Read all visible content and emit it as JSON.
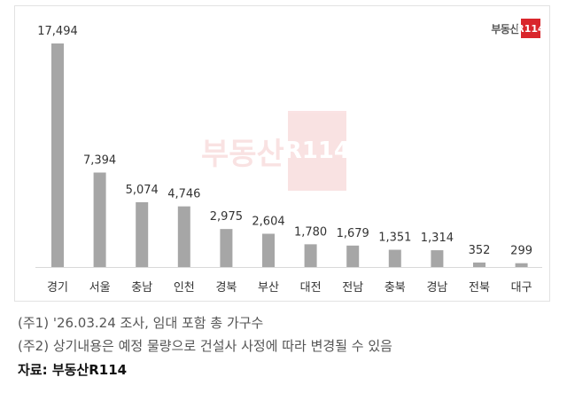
{
  "logo": {
    "text": "부동산",
    "box": "R114"
  },
  "watermark": {
    "text": "부동산",
    "box": "R114"
  },
  "chart_data": {
    "type": "bar",
    "categories": [
      "경기",
      "서울",
      "충남",
      "인천",
      "경북",
      "부산",
      "대전",
      "전남",
      "충북",
      "경남",
      "전북",
      "대구"
    ],
    "values": [
      17494,
      7394,
      5074,
      4746,
      2975,
      2604,
      1780,
      1679,
      1351,
      1314,
      352,
      299
    ],
    "value_labels": [
      "17,494",
      "7,394",
      "5,074",
      "4,746",
      "2,975",
      "2,604",
      "1,780",
      "1,679",
      "1,351",
      "1,314",
      "352",
      "299"
    ],
    "ylim": [
      0,
      17494
    ],
    "bar_color": "#a6a6a6",
    "grid": false,
    "legend": "none"
  },
  "notes": [
    "(주1) '26.03.24 조사, 임대 포함 총 가구수",
    "(주2) 상기내용은 예정 물량으로 건설사 사정에 따라 변경될 수 있음"
  ],
  "source": "자료: 부동산R114"
}
